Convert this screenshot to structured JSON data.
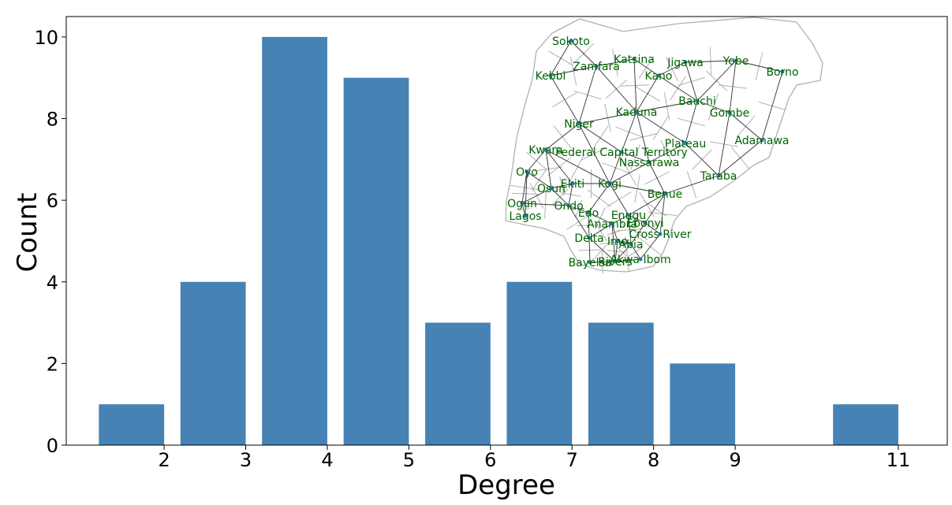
{
  "chart_data": {
    "type": "bar",
    "x": [
      1.6,
      2.6,
      3.6,
      4.6,
      5.6,
      6.6,
      7.6,
      8.6,
      10.6
    ],
    "values": [
      1,
      4,
      10,
      9,
      3,
      4,
      3,
      2,
      1
    ],
    "bar_width": 0.8,
    "xlabel": "Degree",
    "ylabel": "Count",
    "xticks": [
      2,
      3,
      4,
      5,
      6,
      7,
      8,
      9,
      11
    ],
    "yticks": [
      0,
      2,
      4,
      6,
      8,
      10
    ],
    "xlim": [
      0.8,
      11.6
    ],
    "ylim": [
      0,
      10.5
    ],
    "bar_color": "#4682b4",
    "grid": false,
    "inset": {
      "type": "network-map",
      "node_color": "#1f77b4",
      "edge_color": "#333333",
      "label_color": "#006400",
      "boundary_color": "#b0b0b0",
      "nodes": [
        {
          "name": "Sokoto",
          "pos": [
            724,
            52
          ]
        },
        {
          "name": "Zamfara",
          "pos": [
            756,
            84
          ]
        },
        {
          "name": "Katsina",
          "pos": [
            804,
            75
          ]
        },
        {
          "name": "Jigawa",
          "pos": [
            869,
            79
          ]
        },
        {
          "name": "Yobe",
          "pos": [
            933,
            77
          ]
        },
        {
          "name": "Borno",
          "pos": [
            992,
            91
          ]
        },
        {
          "name": "Kebbi",
          "pos": [
            698,
            96
          ]
        },
        {
          "name": "Kano",
          "pos": [
            835,
            96
          ]
        },
        {
          "name": "Bauchi",
          "pos": [
            884,
            128
          ]
        },
        {
          "name": "Gombe",
          "pos": [
            925,
            143
          ]
        },
        {
          "name": "Kaduna",
          "pos": [
            807,
            142
          ]
        },
        {
          "name": "Niger",
          "pos": [
            734,
            157
          ]
        },
        {
          "name": "Adamawa",
          "pos": [
            966,
            178
          ]
        },
        {
          "name": "Plateau",
          "pos": [
            869,
            182
          ]
        },
        {
          "name": "Kwara",
          "pos": [
            692,
            190
          ]
        },
        {
          "name": "Federal Capital Territory",
          "pos": [
            788,
            193
          ]
        },
        {
          "name": "Nassarawa",
          "pos": [
            823,
            206
          ]
        },
        {
          "name": "Oyo",
          "pos": [
            668,
            218
          ]
        },
        {
          "name": "Taraba",
          "pos": [
            911,
            223
          ]
        },
        {
          "name": "Ekiti",
          "pos": [
            726,
            233
          ]
        },
        {
          "name": "Kogi",
          "pos": [
            773,
            233
          ]
        },
        {
          "name": "Osun",
          "pos": [
            699,
            239
          ]
        },
        {
          "name": "Benue",
          "pos": [
            843,
            246
          ]
        },
        {
          "name": "Ogun",
          "pos": [
            662,
            258
          ]
        },
        {
          "name": "Ondo",
          "pos": [
            721,
            261
          ]
        },
        {
          "name": "Edo",
          "pos": [
            746,
            270
          ]
        },
        {
          "name": "Enugu",
          "pos": [
            797,
            273
          ]
        },
        {
          "name": "Lagos",
          "pos": [
            666,
            274
          ]
        },
        {
          "name": "Anambra",
          "pos": [
            776,
            284
          ]
        },
        {
          "name": "Ebonyi",
          "pos": [
            818,
            283
          ]
        },
        {
          "name": "Cross River",
          "pos": [
            837,
            297
          ]
        },
        {
          "name": "Delta",
          "pos": [
            747,
            302
          ]
        },
        {
          "name": "Imo",
          "pos": [
            783,
            306
          ]
        },
        {
          "name": "Abia",
          "pos": [
            800,
            310
          ]
        },
        {
          "name": "Akwa Ibom",
          "pos": [
            812,
            329
          ]
        },
        {
          "name": "Bayelsa",
          "pos": [
            748,
            333
          ]
        },
        {
          "name": "Rivers",
          "pos": [
            780,
            332
          ]
        }
      ],
      "edges": [
        [
          "Sokoto",
          "Zamfara"
        ],
        [
          "Sokoto",
          "Kebbi"
        ],
        [
          "Zamfara",
          "Kebbi"
        ],
        [
          "Zamfara",
          "Katsina"
        ],
        [
          "Zamfara",
          "Niger"
        ],
        [
          "Zamfara",
          "Kaduna"
        ],
        [
          "Katsina",
          "Kano"
        ],
        [
          "Katsina",
          "Kaduna"
        ],
        [
          "Kano",
          "Jigawa"
        ],
        [
          "Kano",
          "Bauchi"
        ],
        [
          "Kano",
          "Kaduna"
        ],
        [
          "Jigawa",
          "Yobe"
        ],
        [
          "Jigawa",
          "Bauchi"
        ],
        [
          "Yobe",
          "Borno"
        ],
        [
          "Yobe",
          "Gombe"
        ],
        [
          "Yobe",
          "Bauchi"
        ],
        [
          "Borno",
          "Adamawa"
        ],
        [
          "Bauchi",
          "Gombe"
        ],
        [
          "Bauchi",
          "Plateau"
        ],
        [
          "Bauchi",
          "Kaduna"
        ],
        [
          "Gombe",
          "Adamawa"
        ],
        [
          "Gombe",
          "Taraba"
        ],
        [
          "Adamawa",
          "Taraba"
        ],
        [
          "Kebbi",
          "Niger"
        ],
        [
          "Niger",
          "Kaduna"
        ],
        [
          "Niger",
          "Kwara"
        ],
        [
          "Niger",
          "Federal Capital Territory"
        ],
        [
          "Niger",
          "Kogi"
        ],
        [
          "Kaduna",
          "Federal Capital Territory"
        ],
        [
          "Kaduna",
          "Nassarawa"
        ],
        [
          "Kaduna",
          "Plateau"
        ],
        [
          "Plateau",
          "Nassarawa"
        ],
        [
          "Plateau",
          "Taraba"
        ],
        [
          "Taraba",
          "Benue"
        ],
        [
          "Federal Capital Territory",
          "Nassarawa"
        ],
        [
          "Federal Capital Territory",
          "Kogi"
        ],
        [
          "Nassarawa",
          "Benue"
        ],
        [
          "Nassarawa",
          "Kogi"
        ],
        [
          "Kwara",
          "Oyo"
        ],
        [
          "Kwara",
          "Osun"
        ],
        [
          "Kwara",
          "Ekiti"
        ],
        [
          "Kwara",
          "Kogi"
        ],
        [
          "Oyo",
          "Ogun"
        ],
        [
          "Oyo",
          "Osun"
        ],
        [
          "Osun",
          "Ogun"
        ],
        [
          "Osun",
          "Ondo"
        ],
        [
          "Osun",
          "Ekiti"
        ],
        [
          "Ekiti",
          "Ondo"
        ],
        [
          "Ekiti",
          "Kogi"
        ],
        [
          "Kogi",
          "Edo"
        ],
        [
          "Kogi",
          "Enugu"
        ],
        [
          "Kogi",
          "Benue"
        ],
        [
          "Ogun",
          "Lagos"
        ],
        [
          "Ogun",
          "Ondo"
        ],
        [
          "Ondo",
          "Edo"
        ],
        [
          "Ondo",
          "Delta"
        ],
        [
          "Edo",
          "Delta"
        ],
        [
          "Edo",
          "Anambra"
        ],
        [
          "Benue",
          "Enugu"
        ],
        [
          "Benue",
          "Ebonyi"
        ],
        [
          "Benue",
          "Cross River"
        ],
        [
          "Enugu",
          "Anambra"
        ],
        [
          "Enugu",
          "Ebonyi"
        ],
        [
          "Enugu",
          "Abia"
        ],
        [
          "Anambra",
          "Delta"
        ],
        [
          "Anambra",
          "Imo"
        ],
        [
          "Anambra",
          "Rivers"
        ],
        [
          "Ebonyi",
          "Cross River"
        ],
        [
          "Ebonyi",
          "Abia"
        ],
        [
          "Cross River",
          "Akwa Ibom"
        ],
        [
          "Delta",
          "Bayelsa"
        ],
        [
          "Delta",
          "Rivers"
        ],
        [
          "Imo",
          "Abia"
        ],
        [
          "Imo",
          "Rivers"
        ],
        [
          "Abia",
          "Rivers"
        ],
        [
          "Abia",
          "Akwa Ibom"
        ],
        [
          "Rivers",
          "Bayelsa"
        ],
        [
          "Rivers",
          "Akwa Ibom"
        ],
        [
          "Lagos",
          "Oyo"
        ]
      ]
    }
  }
}
